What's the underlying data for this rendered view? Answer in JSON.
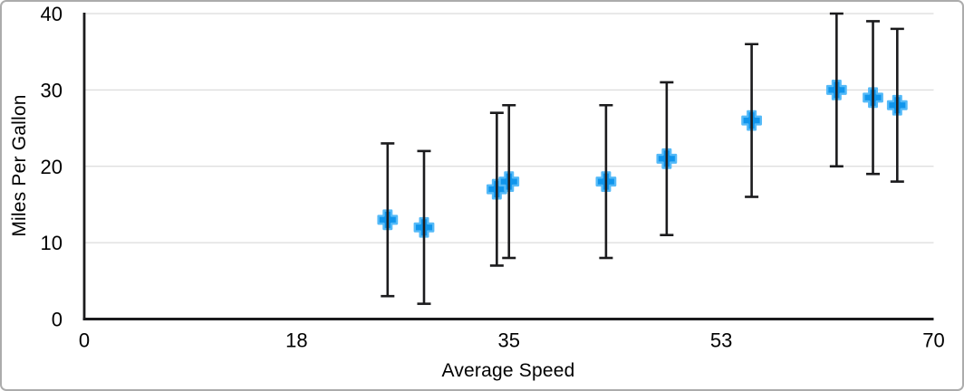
{
  "figure": {
    "background": "#ffffff",
    "border_color": "#acacac"
  },
  "chart_data": {
    "type": "scatter",
    "title": "",
    "xlabel": "Average Speed",
    "ylabel": "Miles Per Gallon",
    "xlim": [
      0,
      70
    ],
    "ylim": [
      0,
      40
    ],
    "grid": "horizontal",
    "legend": "none",
    "axis_color": "#1b1b1d",
    "gridline_color": "#dcdcdc",
    "tick_label_color": "#000000",
    "x_ticks": [
      {
        "value": 0,
        "label": "0"
      },
      {
        "value": 17.5,
        "label": "18"
      },
      {
        "value": 35,
        "label": "35"
      },
      {
        "value": 52.5,
        "label": "53"
      },
      {
        "value": 70,
        "label": "70"
      }
    ],
    "y_ticks": [
      {
        "value": 0,
        "label": "0"
      },
      {
        "value": 10,
        "label": "10"
      },
      {
        "value": 20,
        "label": "20"
      },
      {
        "value": 30,
        "label": "30"
      },
      {
        "value": 40,
        "label": "40"
      }
    ],
    "series": [
      {
        "name": "Miles Per Gallon",
        "marker": "plus",
        "marker_color": "#1095ec",
        "marker_outline_color": "#55baf8",
        "error_bars": {
          "type": "fixed",
          "amount": 10,
          "color": "#1b1b1d"
        },
        "points": [
          {
            "x": 25,
            "y": 13
          },
          {
            "x": 28,
            "y": 12
          },
          {
            "x": 34,
            "y": 17
          },
          {
            "x": 35,
            "y": 18
          },
          {
            "x": 43,
            "y": 18
          },
          {
            "x": 48,
            "y": 21
          },
          {
            "x": 55,
            "y": 26
          },
          {
            "x": 62,
            "y": 30
          },
          {
            "x": 65,
            "y": 29
          },
          {
            "x": 67,
            "y": 28
          }
        ]
      }
    ]
  }
}
